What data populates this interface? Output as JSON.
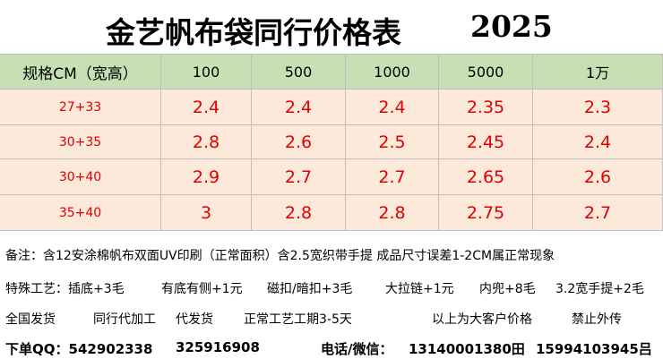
{
  "header": {
    "title": "金艺帆布袋同行价格表",
    "year": "2025"
  },
  "table": {
    "columns": [
      "规格CM（宽高）",
      "100",
      "500",
      "1000",
      "5000",
      "1万"
    ],
    "rows": [
      [
        "27+33",
        "2.4",
        "2.4",
        "2.4",
        "2.35",
        "2.3"
      ],
      [
        "30+35",
        "2.8",
        "2.6",
        "2.5",
        "2.45",
        "2.4"
      ],
      [
        "30+40",
        "2.9",
        "2.7",
        "2.7",
        "2.65",
        "2.6"
      ],
      [
        "35+40",
        "3",
        "2.8",
        "2.8",
        "2.75",
        "2.7"
      ]
    ]
  },
  "notes": [
    [
      "备注：含12安涂棉帆布双面UV印刷（正常面积）含2.5宽织带手提 成品尺寸误差1-2CM属正常现象"
    ],
    [
      "特殊工艺：插底+3毛",
      "有底有侧+1元",
      "磁扣/暗扣+3毛",
      "大拉链+1元",
      "内兜+8毛",
      "3.2宽手提+2毛"
    ],
    [
      "全国发货",
      "同行代加工",
      "代发货",
      "正常工艺工期3-5天",
      "以上为大客户价格",
      "禁止外传"
    ],
    [
      "下单QQ：542902338",
      "325916908",
      "电话/微信：",
      "13140001380田",
      "15994103945吕"
    ]
  ]
}
